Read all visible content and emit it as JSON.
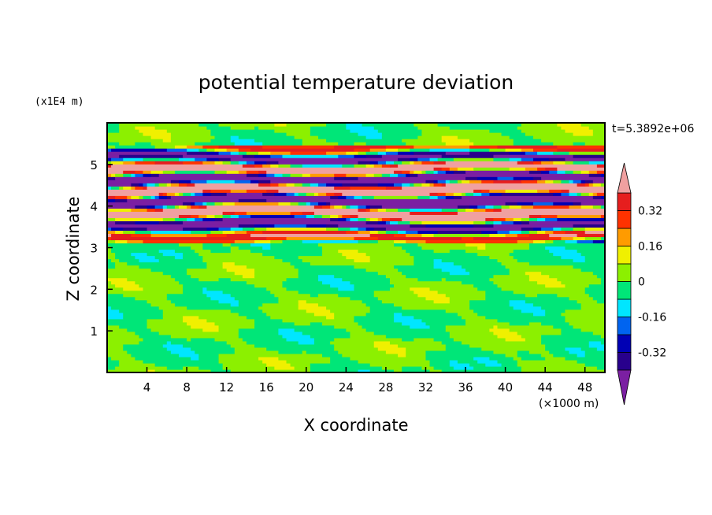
{
  "chart_data": {
    "type": "heatmap",
    "title": "potential temperature deviation",
    "xlabel": "X coordinate",
    "ylabel": "Z coordinate",
    "x_unit": "(×1000 m)",
    "y_unit": "(x1E4 m)",
    "time_label": "t=5.3892e+06",
    "xlim": [
      0,
      50
    ],
    "ylim": [
      0,
      6
    ],
    "x_ticks": [
      4,
      8,
      12,
      16,
      20,
      24,
      28,
      32,
      36,
      40,
      44,
      48
    ],
    "y_ticks": [
      1,
      2,
      3,
      4,
      5
    ],
    "colorbar": {
      "levels": [
        -0.4,
        -0.32,
        -0.24,
        -0.16,
        -0.08,
        0,
        0.08,
        0.16,
        0.24,
        0.32,
        0.4
      ],
      "labels": [
        "0.32",
        "0.16",
        "0",
        "-0.16",
        "-0.32"
      ],
      "label_values": [
        0.32,
        0.16,
        0,
        -0.16,
        -0.32
      ],
      "colors": [
        "#7b1fa2",
        "#28008c",
        "#0000b4",
        "#0064f0",
        "#00e6ff",
        "#00e678",
        "#8cf000",
        "#f0f000",
        "#ff9b00",
        "#ff3200",
        "#e61e1e",
        "#f0a0a0"
      ]
    },
    "layers": [
      {
        "z_min": 0.0,
        "z_max": 3.15,
        "description": "green band",
        "dominant_levels": [
          0,
          0.08
        ]
      },
      {
        "z_min": 3.15,
        "z_max": 5.45,
        "description": "alternating strong positive and negative layers",
        "dominant_levels": [
          -0.4,
          0.4
        ]
      },
      {
        "z_min": 5.45,
        "z_max": 6.0,
        "description": "green band",
        "dominant_levels": [
          0,
          0.08
        ]
      }
    ]
  }
}
